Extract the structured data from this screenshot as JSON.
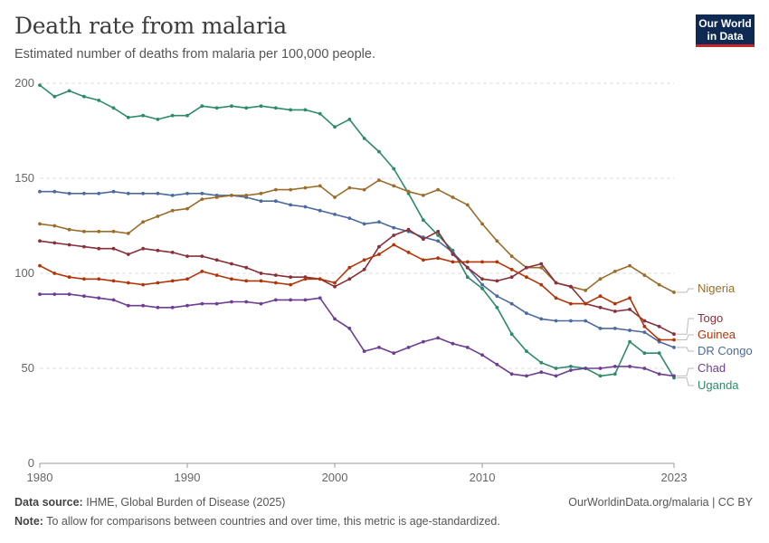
{
  "header": {
    "title": "Death rate from malaria",
    "subtitle": "Estimated number of deaths from malaria per 100,000 people.",
    "logo_line1": "Our World",
    "logo_line2": "in Data"
  },
  "footer": {
    "source_label": "Data source:",
    "source_text": "IHME, Global Burden of Disease (2025)",
    "note_label": "Note:",
    "note_text": "To allow for comparisons between countries and over time, this metric is age-standardized.",
    "credit": "OurWorldinData.org/malaria | CC BY"
  },
  "chart_data": {
    "type": "line",
    "title": "Death rate from malaria",
    "xlabel": "",
    "ylabel": "",
    "xlim": [
      1980,
      2023
    ],
    "ylim": [
      0,
      200
    ],
    "x_ticks": [
      "1980",
      "1990",
      "2000",
      "2010",
      "2023"
    ],
    "x_tick_values": [
      1980,
      1990,
      2000,
      2010,
      2023
    ],
    "y_ticks": [
      "0",
      "50",
      "100",
      "150",
      "200"
    ],
    "y_tick_values": [
      0,
      50,
      100,
      150,
      200
    ],
    "grid": "horizontal dashed",
    "legend": "right (line end labels)",
    "x": [
      1980,
      1981,
      1982,
      1983,
      1984,
      1985,
      1986,
      1987,
      1988,
      1989,
      1990,
      1991,
      1992,
      1993,
      1994,
      1995,
      1996,
      1997,
      1998,
      1999,
      2000,
      2001,
      2002,
      2003,
      2004,
      2005,
      2006,
      2007,
      2008,
      2009,
      2010,
      2011,
      2012,
      2013,
      2014,
      2015,
      2016,
      2017,
      2018,
      2019,
      2020,
      2021,
      2022,
      2023
    ],
    "series": [
      {
        "name": "Uganda",
        "color": "#2e8b6a",
        "values": [
          199,
          193,
          196,
          193,
          191,
          187,
          182,
          183,
          181,
          183,
          183,
          188,
          187,
          188,
          187,
          188,
          187,
          186,
          186,
          184,
          177,
          181,
          171,
          164,
          155,
          142,
          128,
          120,
          112,
          98,
          92,
          82,
          68,
          59,
          53,
          50,
          51,
          50,
          46,
          47,
          64,
          58,
          58,
          45
        ]
      },
      {
        "name": "DR Congo",
        "color": "#4c6a9c",
        "values": [
          143,
          143,
          142,
          142,
          142,
          143,
          142,
          142,
          142,
          141,
          142,
          142,
          141,
          141,
          140,
          138,
          138,
          136,
          135,
          133,
          131,
          129,
          126,
          127,
          124,
          122,
          119,
          117,
          111,
          103,
          94,
          88,
          84,
          79,
          76,
          75,
          75,
          75,
          71,
          71,
          70,
          69,
          64,
          61
        ]
      },
      {
        "name": "Nigeria",
        "color": "#9a6d2c",
        "values": [
          126,
          125,
          123,
          122,
          122,
          122,
          121,
          127,
          130,
          133,
          134,
          139,
          140,
          141,
          141,
          142,
          144,
          144,
          145,
          146,
          140,
          145,
          144,
          149,
          146,
          143,
          141,
          144,
          140,
          136,
          126,
          117,
          109,
          103,
          103,
          95,
          93,
          91,
          97,
          101,
          104,
          99,
          94,
          90
        ]
      },
      {
        "name": "Togo",
        "color": "#883039",
        "values": [
          117,
          116,
          115,
          114,
          113,
          113,
          110,
          113,
          112,
          111,
          109,
          109,
          107,
          105,
          103,
          100,
          99,
          98,
          98,
          97,
          93,
          97,
          102,
          114,
          120,
          123,
          118,
          122,
          110,
          103,
          97,
          96,
          98,
          103,
          105,
          95,
          93,
          84,
          82,
          80,
          81,
          75,
          72,
          68
        ]
      },
      {
        "name": "Guinea",
        "color": "#b13507",
        "values": [
          104,
          100,
          98,
          97,
          97,
          96,
          95,
          94,
          95,
          96,
          97,
          101,
          99,
          97,
          96,
          96,
          95,
          94,
          97,
          97,
          95,
          103,
          107,
          110,
          115,
          111,
          107,
          108,
          106,
          106,
          106,
          106,
          102,
          98,
          94,
          87,
          84,
          84,
          88,
          84,
          87,
          72,
          65,
          65
        ]
      },
      {
        "name": "Chad",
        "color": "#6d3e91",
        "values": [
          89,
          89,
          89,
          88,
          87,
          86,
          83,
          83,
          82,
          82,
          83,
          84,
          84,
          85,
          85,
          84,
          86,
          86,
          86,
          87,
          76,
          71,
          59,
          61,
          58,
          61,
          64,
          66,
          63,
          61,
          57,
          52,
          47,
          46,
          48,
          46,
          49,
          50,
          50,
          51,
          51,
          50,
          47,
          46
        ]
      }
    ]
  }
}
